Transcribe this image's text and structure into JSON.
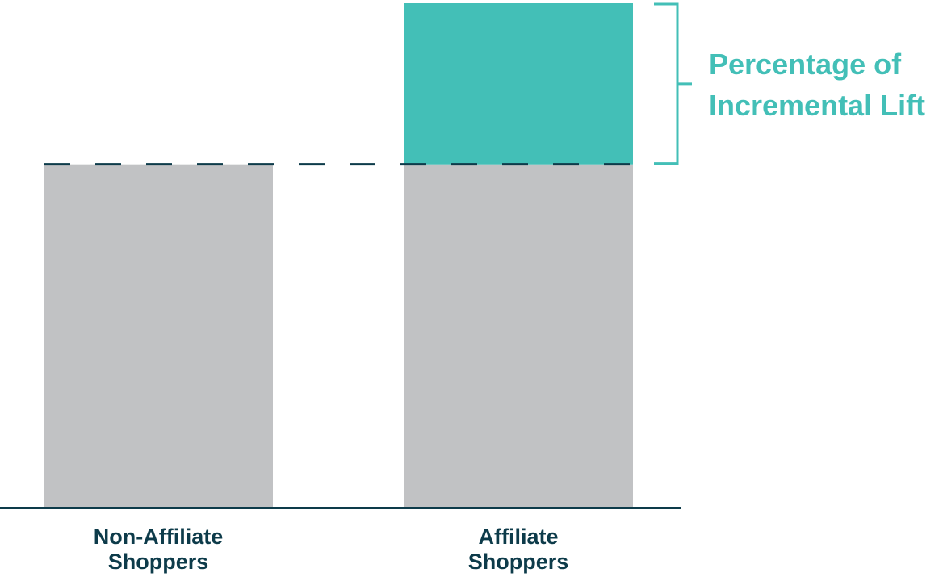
{
  "chart_data": {
    "type": "bar",
    "stacked": true,
    "categories": [
      {
        "lines": [
          "Non-Affiliate",
          "Shoppers"
        ]
      },
      {
        "lines": [
          "Affiliate",
          "Shoppers"
        ]
      }
    ],
    "series": [
      {
        "values": [
          68,
          68
        ],
        "color": "#c1c2c4"
      },
      {
        "values": [
          0,
          32
        ],
        "color": "#43bfb7"
      }
    ],
    "ylim": [
      0,
      100
    ],
    "grid": false,
    "reference_line": {
      "value": 68,
      "style": "dashed",
      "color": "#0d3b4a"
    },
    "annotation": {
      "lines": [
        "Percentage of",
        "Incremental Lift"
      ],
      "from": 68,
      "to": 100,
      "color": "#43bfb7"
    },
    "axis_color": "#0d3b4a",
    "label_color": "#0d3b4a"
  }
}
